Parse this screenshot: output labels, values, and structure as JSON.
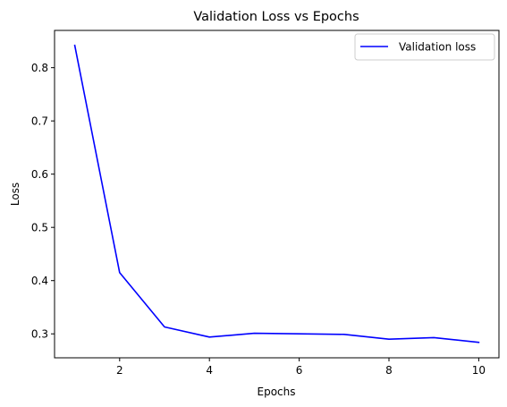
{
  "chart_data": {
    "type": "line",
    "title": "Validation Loss vs Epochs",
    "xlabel": "Epochs",
    "ylabel": "Loss",
    "xlim": [
      0.55,
      10.45
    ],
    "ylim": [
      0.255,
      0.87
    ],
    "xticks": [
      2,
      4,
      6,
      8,
      10
    ],
    "xtick_labels": [
      "2",
      "4",
      "6",
      "8",
      "10"
    ],
    "yticks": [
      0.3,
      0.4,
      0.5,
      0.6,
      0.7,
      0.8
    ],
    "ytick_labels": [
      "0.3",
      "0.4",
      "0.5",
      "0.6",
      "0.7",
      "0.8"
    ],
    "grid": false,
    "legend_position": "top-right",
    "series": [
      {
        "name": "Validation loss",
        "color": "#0000ff",
        "x": [
          1,
          2,
          3,
          4,
          5,
          6,
          7,
          8,
          9,
          10
        ],
        "y": [
          0.842,
          0.415,
          0.313,
          0.294,
          0.301,
          0.3,
          0.299,
          0.29,
          0.293,
          0.284
        ]
      }
    ]
  }
}
